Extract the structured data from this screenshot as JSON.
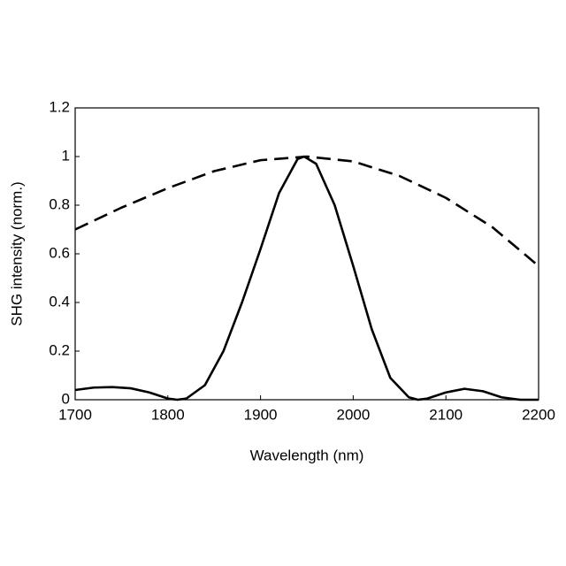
{
  "chart_data": {
    "type": "line",
    "xlabel": "Wavelength (nm)",
    "ylabel": "SHG intensity (norm.)",
    "xlim": [
      1700,
      2200
    ],
    "xticks": [
      1700,
      1800,
      1900,
      2000,
      2100,
      2200
    ],
    "ylim": [
      0,
      1.2
    ],
    "yticks": [
      0,
      0.2,
      0.4,
      0.6,
      0.8,
      1,
      1.2
    ],
    "grid": false,
    "series": [
      {
        "color": "#000000",
        "dashed": false,
        "x": [
          1700,
          1720,
          1740,
          1760,
          1780,
          1800,
          1810,
          1820,
          1840,
          1860,
          1880,
          1900,
          1920,
          1940,
          1947,
          1960,
          1980,
          2000,
          2020,
          2040,
          2060,
          2070,
          2080,
          2100,
          2120,
          2140,
          2160,
          2180,
          2200
        ],
        "values": [
          0.04,
          0.05,
          0.052,
          0.047,
          0.03,
          0.005,
          0.0,
          0.005,
          0.06,
          0.2,
          0.4,
          0.62,
          0.85,
          0.99,
          1.0,
          0.97,
          0.8,
          0.55,
          0.29,
          0.09,
          0.01,
          0.0,
          0.005,
          0.03,
          0.045,
          0.035,
          0.01,
          0.0,
          0.0
        ]
      },
      {
        "color": "#000000",
        "dashed": true,
        "x": [
          1700,
          1750,
          1800,
          1850,
          1900,
          1950,
          2000,
          2050,
          2100,
          2150,
          2200
        ],
        "values": [
          0.7,
          0.79,
          0.87,
          0.94,
          0.985,
          1.0,
          0.98,
          0.92,
          0.83,
          0.71,
          0.55
        ]
      }
    ]
  }
}
